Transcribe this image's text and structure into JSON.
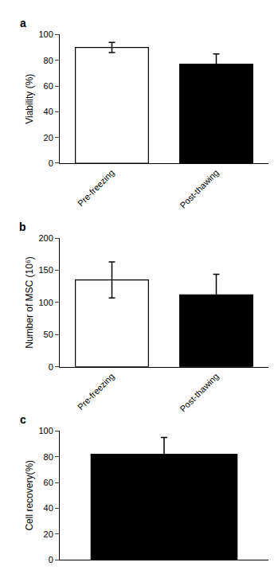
{
  "chart_data": [
    {
      "type": "bar",
      "title": "a",
      "categories": [
        "Pre-freezing",
        "Post-thawing"
      ],
      "values": [
        90,
        77
      ],
      "errors": [
        4,
        8
      ],
      "colors": [
        "white",
        "black"
      ],
      "ylabel": "Viability (%)",
      "ylim": [
        0,
        100
      ],
      "yticks": [
        0,
        20,
        40,
        60,
        80,
        100
      ],
      "grid": false
    },
    {
      "type": "bar",
      "title": "b",
      "categories": [
        "Pre-freezing",
        "Post-thawing"
      ],
      "values": [
        135,
        112
      ],
      "errors": [
        28,
        32
      ],
      "colors": [
        "white",
        "black"
      ],
      "ylabel": "Number of MSC (10⁶)",
      "ylim": [
        0,
        200
      ],
      "yticks": [
        0,
        50,
        100,
        150,
        200
      ],
      "grid": false
    },
    {
      "type": "bar",
      "title": "c",
      "categories": [
        null
      ],
      "values": [
        82
      ],
      "errors": [
        13
      ],
      "colors": [
        "black"
      ],
      "ylabel": "Cell recovery(%)",
      "ylim": [
        0,
        100
      ],
      "yticks": [
        0,
        20,
        40,
        60,
        80,
        100
      ],
      "grid": false,
      "tick_labels": "y"
    }
  ]
}
